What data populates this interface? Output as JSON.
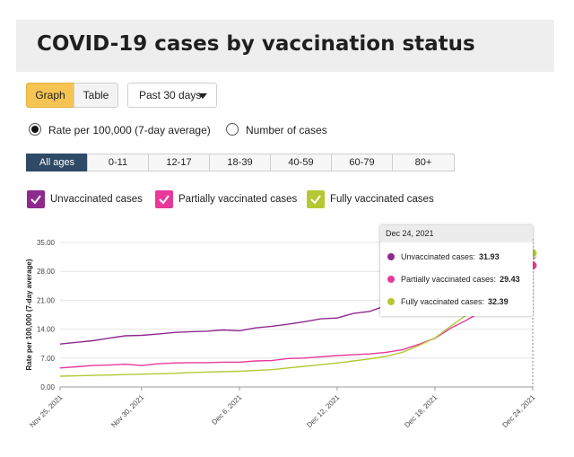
{
  "page": {
    "title": "COVID-19 cases by vaccination status"
  },
  "view_toggle": {
    "graph_label": "Graph",
    "table_label": "Table"
  },
  "period_select": {
    "value": "Past 30 days"
  },
  "measure": {
    "rate_label": "Rate per 100,000 (7-day average)",
    "count_label": "Number of cases",
    "selected": "rate"
  },
  "age_groups": {
    "items": [
      "All ages",
      "0-11",
      "12-17",
      "18-39",
      "40-59",
      "60-79",
      "80+"
    ],
    "selected": "All ages"
  },
  "colors": {
    "unvaccinated": "#8e2a8e",
    "partially": "#e8399a",
    "fully": "#b5c833",
    "active_tab": "#2f4a66",
    "graph_button": "#f6c453"
  },
  "tooltip": {
    "date": "Dec 24, 2021",
    "rows": [
      {
        "label": "Unvaccinated cases:",
        "value": "31.93"
      },
      {
        "label": "Partially vaccinated cases:",
        "value": "29.43"
      },
      {
        "label": "Fully vaccinated cases:",
        "value": "32.39"
      }
    ]
  },
  "chart_data": {
    "type": "line",
    "ylabel": "Rate per 100,000 (7-day average)",
    "xlabel": "",
    "ylim": [
      0,
      35
    ],
    "yticks": [
      "0.00",
      "7.00",
      "14.00",
      "21.00",
      "28.00",
      "35.00"
    ],
    "xtick_labels": [
      "Nov 25, 2021",
      "Nov 30, 2021",
      "Dec 6, 2021",
      "Dec 12, 2021",
      "Dec 18, 2021",
      "Dec 24, 2021"
    ],
    "x": [
      "2021-11-25",
      "2021-11-26",
      "2021-11-27",
      "2021-11-28",
      "2021-11-29",
      "2021-11-30",
      "2021-12-01",
      "2021-12-02",
      "2021-12-03",
      "2021-12-04",
      "2021-12-05",
      "2021-12-06",
      "2021-12-07",
      "2021-12-08",
      "2021-12-09",
      "2021-12-10",
      "2021-12-11",
      "2021-12-12",
      "2021-12-13",
      "2021-12-14",
      "2021-12-15",
      "2021-12-16",
      "2021-12-17",
      "2021-12-18",
      "2021-12-19",
      "2021-12-20",
      "2021-12-21",
      "2021-12-22",
      "2021-12-23",
      "2021-12-24"
    ],
    "legend": "top-left",
    "series": [
      {
        "name": "Unvaccinated cases",
        "key": "unvaccinated",
        "values": [
          10.4,
          10.8,
          11.2,
          11.8,
          12.4,
          12.5,
          12.8,
          13.2,
          13.4,
          13.5,
          13.8,
          13.6,
          14.3,
          14.7,
          15.2,
          15.8,
          16.5,
          16.7,
          17.8,
          18.3,
          19.7,
          21.2,
          22.8,
          24.1,
          25.7,
          27.0,
          28.5,
          30.0,
          31.2,
          31.93
        ]
      },
      {
        "name": "Partially vaccinated cases",
        "key": "partially",
        "values": [
          4.6,
          4.9,
          5.2,
          5.3,
          5.5,
          5.2,
          5.6,
          5.8,
          5.9,
          5.9,
          6.0,
          6.0,
          6.3,
          6.4,
          6.9,
          7.0,
          7.3,
          7.6,
          7.8,
          8.0,
          8.4,
          9.0,
          10.3,
          11.8,
          14.3,
          16.3,
          18.6,
          21.5,
          24.8,
          29.43
        ]
      },
      {
        "name": "Fully vaccinated cases",
        "key": "fully",
        "values": [
          2.6,
          2.7,
          2.8,
          2.9,
          3.0,
          3.1,
          3.2,
          3.3,
          3.5,
          3.6,
          3.7,
          3.8,
          4.0,
          4.2,
          4.6,
          5.0,
          5.4,
          5.8,
          6.3,
          6.8,
          7.4,
          8.4,
          10.0,
          11.9,
          14.8,
          17.6,
          20.7,
          24.4,
          28.3,
          32.39
        ]
      }
    ]
  }
}
